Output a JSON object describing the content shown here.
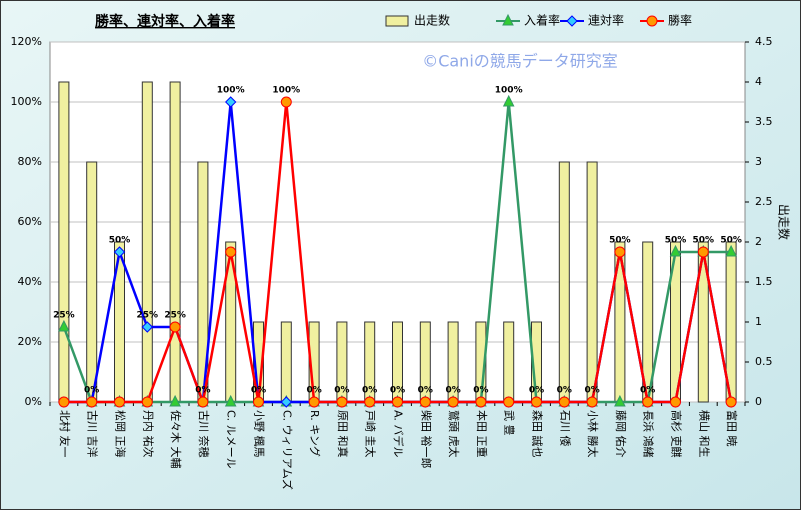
{
  "chart_data": {
    "type": "bar_line",
    "title": "勝率、連対率、入着率",
    "watermark": "©Caniの競馬データ研究室",
    "y2label": "出走数",
    "categories": [
      "北村 友一",
      "古川 吉洋",
      "松岡 正海",
      "丹内 祐次",
      "佐々木 大輔",
      "古川 奈穂",
      "C. ルメール",
      "小野 楓馬",
      "C. ウィリアムズ",
      "R. キング",
      "原田 和真",
      "戸崎 圭太",
      "A. バデル",
      "柴田 裕一郎",
      "鷲頭 虎太",
      "本田 正重",
      "武 豊",
      "森田 誠也",
      "石川 倭",
      "小林 勝太",
      "藤岡 佑介",
      "長浜 鴻緒",
      "高杉 吏麒",
      "横山 和生",
      "富田 暁"
    ],
    "series": [
      {
        "name": "出走数",
        "kind": "bar",
        "axis": "y2",
        "color": "#f0f0a0",
        "values": [
          4,
          3,
          2,
          4,
          4,
          3,
          2,
          1,
          1,
          1,
          1,
          1,
          1,
          1,
          1,
          1,
          1,
          1,
          3,
          3,
          2,
          2,
          2,
          2,
          2
        ]
      },
      {
        "name": "入着率",
        "kind": "line",
        "marker": "triangle",
        "color": "#339966",
        "values": [
          25,
          0,
          0,
          0,
          0,
          0,
          0,
          0,
          0,
          0,
          0,
          0,
          0,
          0,
          0,
          0,
          100,
          0,
          0,
          0,
          0,
          0,
          50,
          50,
          50
        ]
      },
      {
        "name": "連対率",
        "kind": "line",
        "marker": "diamond",
        "color": "#0000ff",
        "values": [
          0,
          0,
          50,
          25,
          25,
          0,
          100,
          0,
          0,
          0,
          0,
          0,
          0,
          0,
          0,
          0,
          0,
          0,
          0,
          0,
          50,
          0,
          0,
          50,
          0
        ]
      },
      {
        "name": "勝率",
        "kind": "line",
        "marker": "circle",
        "color": "#ff0000",
        "values": [
          0,
          0,
          0,
          0,
          25,
          0,
          50,
          0,
          100,
          0,
          0,
          0,
          0,
          0,
          0,
          0,
          0,
          0,
          0,
          0,
          50,
          0,
          0,
          50,
          0
        ]
      }
    ],
    "point_labels": [
      "25%",
      "0%",
      "50%",
      "25%",
      "25%",
      "0%",
      "100%",
      "0%",
      "100%",
      "0%",
      "0%",
      "0%",
      "0%",
      "0%",
      "0%",
      "0%",
      "100%",
      "0%",
      "0%",
      "0%",
      "50%",
      "0%",
      "50%",
      "50%",
      "50%"
    ],
    "ylim": [
      0,
      120
    ],
    "yticks": [
      {
        "value": 0,
        "label": "0%"
      },
      {
        "value": 20,
        "label": "20%"
      },
      {
        "value": 40,
        "label": "40%"
      },
      {
        "value": 60,
        "label": "60%"
      },
      {
        "value": 80,
        "label": "80%"
      },
      {
        "value": 100,
        "label": "100%"
      },
      {
        "value": 120,
        "label": "120%"
      }
    ],
    "y2lim": [
      0,
      4.5
    ],
    "y2ticks": [
      0,
      0.5,
      1,
      1.5,
      2,
      2.5,
      3,
      3.5,
      4,
      4.5
    ],
    "grid": true
  }
}
